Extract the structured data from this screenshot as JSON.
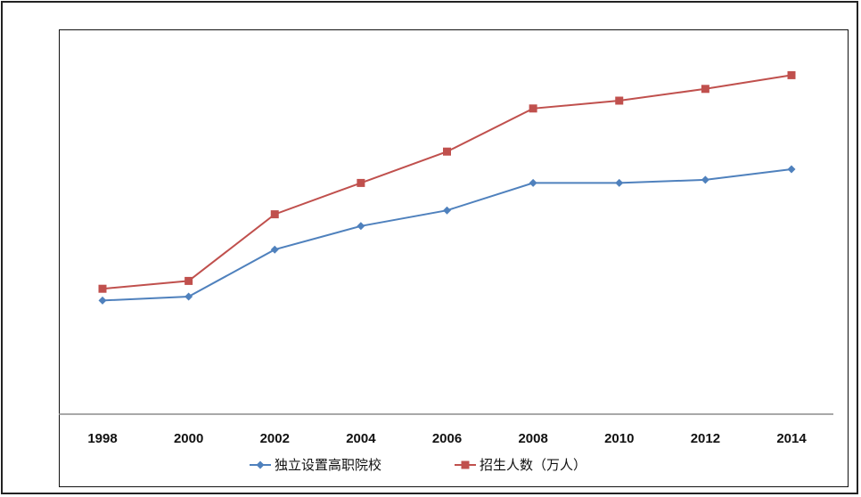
{
  "chart_data": {
    "type": "line",
    "categories": [
      "1998",
      "2000",
      "2002",
      "2004",
      "2006",
      "2008",
      "2010",
      "2012",
      "2014"
    ],
    "series": [
      {
        "name": "独立设置高职院校",
        "color": "#4f81bd",
        "marker": "diamond",
        "values": [
          29,
          30,
          42,
          48,
          52,
          59,
          59,
          59.8,
          62.5
        ]
      },
      {
        "name": "招生人数（万人）",
        "color": "#c0504d",
        "marker": "square",
        "values": [
          32,
          34,
          51,
          59,
          67,
          78,
          80,
          83,
          86.5
        ]
      }
    ],
    "ylim": [
      0,
      100
    ],
    "grid": false,
    "legend_position": "bottom"
  }
}
